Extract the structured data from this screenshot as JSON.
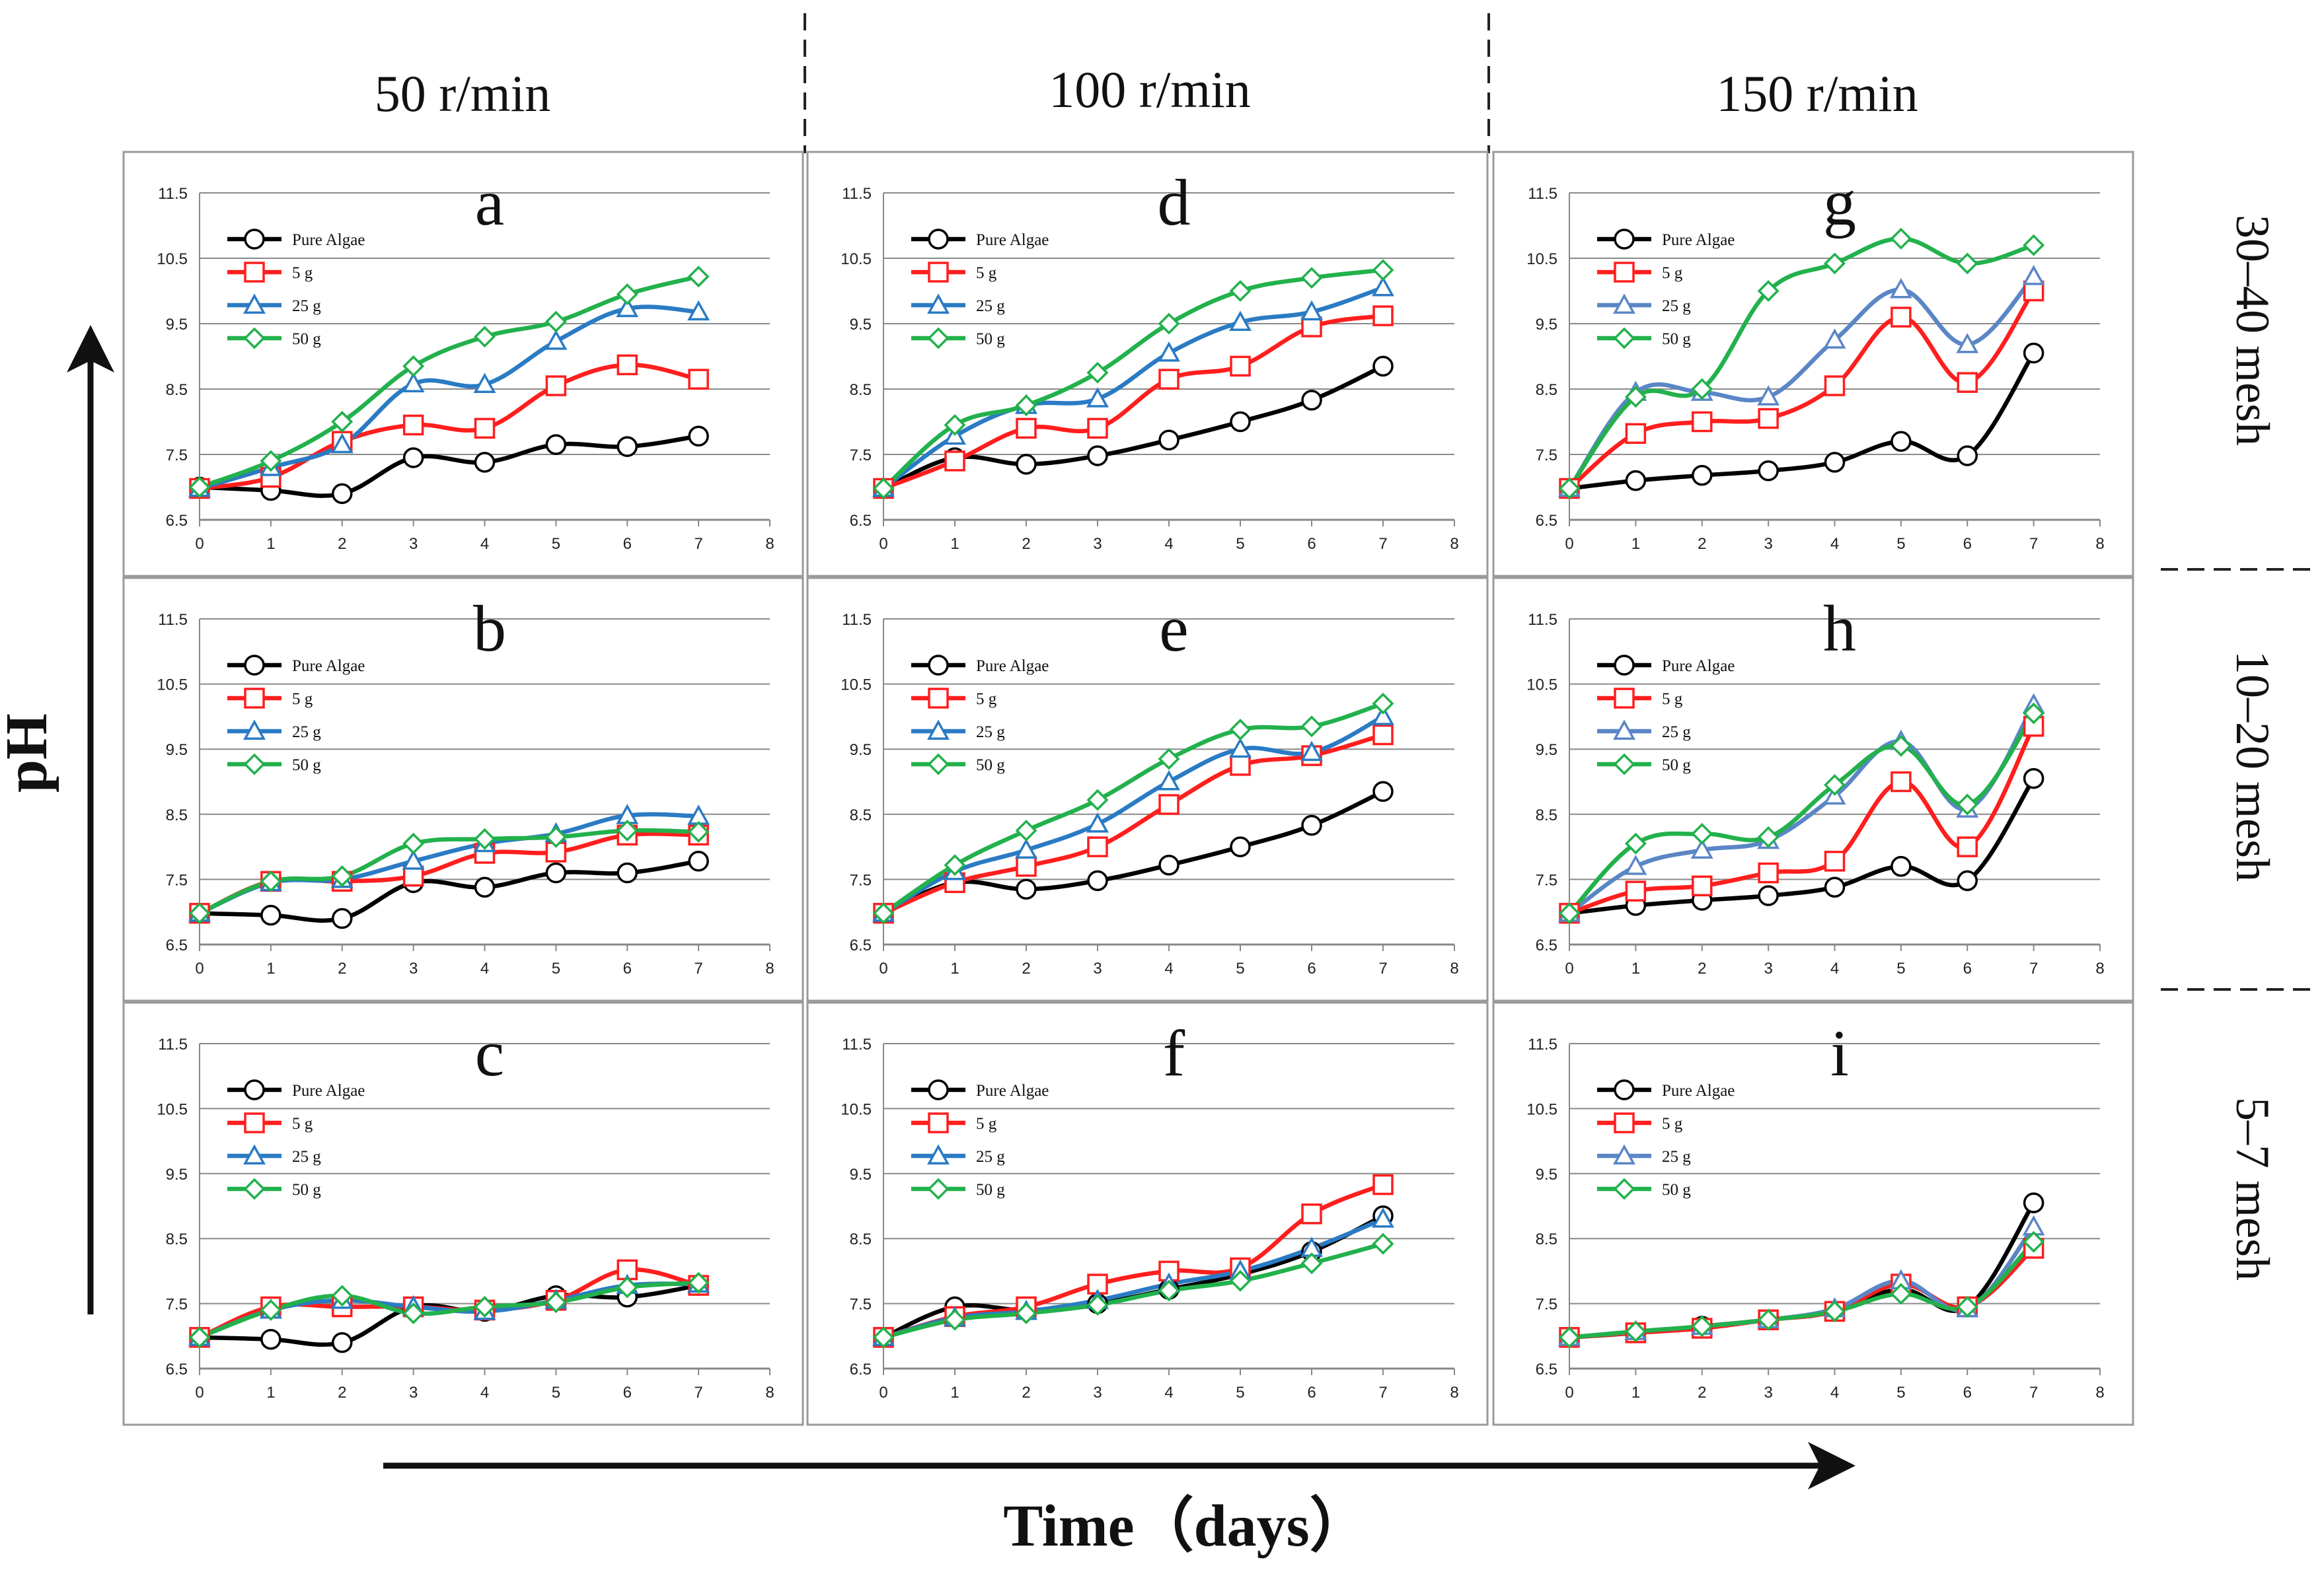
{
  "figure": {
    "y_axis_label": "pH",
    "x_axis_label": "Time（days）",
    "column_headers": [
      "50 r/min",
      "100 r/min",
      "150 r/min"
    ],
    "row_headers": [
      "30–40 mesh",
      "10–20 mesh",
      "5–7 mesh"
    ],
    "colors": {
      "Pure Algae": "#000000",
      "5 g": "#ff1e1e",
      "25 g": "#2a7bc4",
      "25 g (col 3)": "#5b86c6",
      "50 g": "#22b14c"
    },
    "icons": [
      "arrow-up-icon",
      "arrow-right-icon"
    ]
  },
  "chart_data": [
    {
      "panel": "a",
      "type": "line",
      "xlabel": "",
      "ylabel": "",
      "x": [
        0,
        1,
        2,
        3,
        4,
        5,
        6,
        7
      ],
      "xlim": [
        0,
        8
      ],
      "ylim": [
        6.5,
        11.5
      ],
      "xticks": [
        "0",
        "1",
        "2",
        "3",
        "4",
        "5",
        "6",
        "7",
        "8"
      ],
      "yticks": [
        "6.5",
        "7.5",
        "8.5",
        "9.5",
        "10.5",
        "11.5"
      ],
      "grid": true,
      "legend_position": "top-left",
      "series": [
        {
          "name": "Pure Algae",
          "marker": "circle",
          "values": [
            7.0,
            6.95,
            6.9,
            7.45,
            7.38,
            7.65,
            7.62,
            7.78
          ]
        },
        {
          "name": "5 g",
          "marker": "square",
          "values": [
            6.98,
            7.15,
            7.7,
            7.95,
            7.9,
            8.55,
            8.87,
            8.65
          ]
        },
        {
          "name": "25 g",
          "marker": "triangle",
          "values": [
            6.98,
            7.3,
            7.65,
            8.58,
            8.57,
            9.23,
            9.73,
            9.68
          ]
        },
        {
          "name": "50 g",
          "marker": "diamond",
          "values": [
            7.0,
            7.4,
            8.0,
            8.85,
            9.3,
            9.53,
            9.95,
            10.22
          ]
        }
      ]
    },
    {
      "panel": "b",
      "type": "line",
      "xlabel": "",
      "ylabel": "",
      "x": [
        0,
        1,
        2,
        3,
        4,
        5,
        6,
        7
      ],
      "xlim": [
        0,
        8
      ],
      "ylim": [
        6.5,
        11.5
      ],
      "xticks": [
        "0",
        "1",
        "2",
        "3",
        "4",
        "5",
        "6",
        "7",
        "8"
      ],
      "yticks": [
        "6.5",
        "7.5",
        "8.5",
        "9.5",
        "10.5",
        "11.5"
      ],
      "grid": true,
      "legend_position": "top-left",
      "series": [
        {
          "name": "Pure Algae",
          "marker": "circle",
          "values": [
            6.98,
            6.95,
            6.9,
            7.45,
            7.38,
            7.6,
            7.6,
            7.78
          ]
        },
        {
          "name": "5 g",
          "marker": "square",
          "values": [
            6.98,
            7.47,
            7.47,
            7.55,
            7.9,
            7.92,
            8.18,
            8.18
          ]
        },
        {
          "name": "25 g",
          "marker": "triangle",
          "values": [
            6.98,
            7.45,
            7.5,
            7.78,
            8.05,
            8.2,
            8.48,
            8.47
          ]
        },
        {
          "name": "50 g",
          "marker": "diamond",
          "values": [
            6.98,
            7.47,
            7.55,
            8.05,
            8.12,
            8.15,
            8.25,
            8.23
          ]
        }
      ]
    },
    {
      "panel": "c",
      "type": "line",
      "xlabel": "",
      "ylabel": "",
      "x": [
        0,
        1,
        2,
        3,
        4,
        5,
        6,
        7
      ],
      "xlim": [
        0,
        8
      ],
      "ylim": [
        6.5,
        11.5
      ],
      "xticks": [
        "0",
        "1",
        "2",
        "3",
        "4",
        "5",
        "6",
        "7",
        "8"
      ],
      "yticks": [
        "6.5",
        "7.5",
        "8.5",
        "9.5",
        "10.5",
        "11.5"
      ],
      "grid": true,
      "legend_position": "top-left",
      "series": [
        {
          "name": "Pure Algae",
          "marker": "circle",
          "values": [
            6.98,
            6.95,
            6.9,
            7.45,
            7.38,
            7.62,
            7.6,
            7.78
          ]
        },
        {
          "name": "5 g",
          "marker": "square",
          "values": [
            6.98,
            7.45,
            7.45,
            7.45,
            7.4,
            7.55,
            8.02,
            7.78
          ]
        },
        {
          "name": "25 g",
          "marker": "triangle",
          "values": [
            6.98,
            7.4,
            7.55,
            7.45,
            7.38,
            7.55,
            7.78,
            7.8
          ]
        },
        {
          "name": "50 g",
          "marker": "diamond",
          "values": [
            6.98,
            7.4,
            7.62,
            7.35,
            7.45,
            7.52,
            7.75,
            7.82
          ]
        }
      ]
    },
    {
      "panel": "d",
      "type": "line",
      "xlabel": "",
      "ylabel": "",
      "x": [
        0,
        1,
        2,
        3,
        4,
        5,
        6,
        7
      ],
      "xlim": [
        0,
        8
      ],
      "ylim": [
        6.5,
        11.5
      ],
      "xticks": [
        "0",
        "1",
        "2",
        "3",
        "4",
        "5",
        "6",
        "7",
        "8"
      ],
      "yticks": [
        "6.5",
        "7.5",
        "8.5",
        "9.5",
        "10.5",
        "11.5"
      ],
      "grid": true,
      "legend_position": "top-left",
      "series": [
        {
          "name": "Pure Algae",
          "marker": "circle",
          "values": [
            6.98,
            7.45,
            7.35,
            7.48,
            7.72,
            8.0,
            8.33,
            8.85
          ]
        },
        {
          "name": "5 g",
          "marker": "square",
          "values": [
            6.98,
            7.4,
            7.9,
            7.9,
            8.65,
            8.85,
            9.45,
            9.62
          ]
        },
        {
          "name": "25 g",
          "marker": "triangle",
          "values": [
            6.98,
            7.78,
            8.25,
            8.35,
            9.05,
            9.52,
            9.68,
            10.05
          ]
        },
        {
          "name": "50 g",
          "marker": "diamond",
          "values": [
            6.98,
            7.95,
            8.25,
            8.75,
            9.5,
            10.0,
            10.2,
            10.32
          ]
        }
      ]
    },
    {
      "panel": "e",
      "type": "line",
      "xlabel": "",
      "ylabel": "",
      "x": [
        0,
        1,
        2,
        3,
        4,
        5,
        6,
        7
      ],
      "xlim": [
        0,
        8
      ],
      "ylim": [
        6.5,
        11.5
      ],
      "xticks": [
        "0",
        "1",
        "2",
        "3",
        "4",
        "5",
        "6",
        "7",
        "8"
      ],
      "yticks": [
        "6.5",
        "7.5",
        "8.5",
        "9.5",
        "10.5",
        "11.5"
      ],
      "grid": true,
      "legend_position": "top-left",
      "series": [
        {
          "name": "Pure Algae",
          "marker": "circle",
          "values": [
            6.98,
            7.45,
            7.35,
            7.48,
            7.72,
            8.0,
            8.33,
            8.85
          ]
        },
        {
          "name": "5 g",
          "marker": "square",
          "values": [
            6.98,
            7.45,
            7.7,
            8.0,
            8.65,
            9.25,
            9.4,
            9.72
          ]
        },
        {
          "name": "25 g",
          "marker": "triangle",
          "values": [
            6.98,
            7.62,
            7.95,
            8.35,
            9.0,
            9.5,
            9.45,
            10.0
          ]
        },
        {
          "name": "50 g",
          "marker": "diamond",
          "values": [
            6.98,
            7.72,
            8.25,
            8.72,
            9.35,
            9.8,
            9.85,
            10.2
          ]
        }
      ]
    },
    {
      "panel": "f",
      "type": "line",
      "xlabel": "",
      "ylabel": "",
      "x": [
        0,
        1,
        2,
        3,
        4,
        5,
        6,
        7
      ],
      "xlim": [
        0,
        8
      ],
      "ylim": [
        6.5,
        11.5
      ],
      "xticks": [
        "0",
        "1",
        "2",
        "3",
        "4",
        "5",
        "6",
        "7",
        "8"
      ],
      "yticks": [
        "6.5",
        "7.5",
        "8.5",
        "9.5",
        "10.5",
        "11.5"
      ],
      "grid": true,
      "legend_position": "top-left",
      "series": [
        {
          "name": "Pure Algae",
          "marker": "circle",
          "values": [
            6.98,
            7.45,
            7.4,
            7.5,
            7.72,
            7.95,
            8.3,
            8.85
          ]
        },
        {
          "name": "5 g",
          "marker": "square",
          "values": [
            6.98,
            7.3,
            7.45,
            7.8,
            8.0,
            8.05,
            8.88,
            9.33
          ]
        },
        {
          "name": "25 g",
          "marker": "triangle",
          "values": [
            6.98,
            7.28,
            7.38,
            7.55,
            7.8,
            8.0,
            8.35,
            8.8
          ]
        },
        {
          "name": "50 g",
          "marker": "diamond",
          "values": [
            6.98,
            7.25,
            7.35,
            7.48,
            7.7,
            7.85,
            8.12,
            8.42
          ]
        }
      ]
    },
    {
      "panel": "g",
      "type": "line",
      "xlabel": "",
      "ylabel": "",
      "x": [
        0,
        1,
        2,
        3,
        4,
        5,
        6,
        7
      ],
      "xlim": [
        0,
        8
      ],
      "ylim": [
        6.5,
        11.5
      ],
      "xticks": [
        "0",
        "1",
        "2",
        "3",
        "4",
        "5",
        "6",
        "7",
        "8"
      ],
      "yticks": [
        "6.5",
        "7.5",
        "8.5",
        "9.5",
        "10.5",
        "11.5"
      ],
      "grid": true,
      "legend_position": "top-left",
      "series": [
        {
          "name": "Pure Algae",
          "marker": "circle",
          "values": [
            6.98,
            7.1,
            7.18,
            7.25,
            7.38,
            7.7,
            7.48,
            9.05
          ]
        },
        {
          "name": "5 g",
          "marker": "square",
          "values": [
            6.98,
            7.82,
            8.0,
            8.05,
            8.55,
            9.6,
            8.6,
            10.0
          ]
        },
        {
          "name": "25 g",
          "marker": "triangle",
          "values": [
            6.98,
            8.45,
            8.45,
            8.38,
            9.25,
            10.02,
            9.18,
            10.22
          ]
        },
        {
          "name": "50 g",
          "marker": "diamond",
          "values": [
            6.98,
            8.38,
            8.5,
            10.0,
            10.42,
            10.8,
            10.42,
            10.7
          ]
        }
      ]
    },
    {
      "panel": "h",
      "type": "line",
      "xlabel": "",
      "ylabel": "",
      "x": [
        0,
        1,
        2,
        3,
        4,
        5,
        6,
        7
      ],
      "xlim": [
        0,
        8
      ],
      "ylim": [
        6.5,
        11.5
      ],
      "xticks": [
        "0",
        "1",
        "2",
        "3",
        "4",
        "5",
        "6",
        "7",
        "8"
      ],
      "yticks": [
        "6.5",
        "7.5",
        "8.5",
        "9.5",
        "10.5",
        "11.5"
      ],
      "grid": true,
      "legend_position": "top-left",
      "series": [
        {
          "name": "Pure Algae",
          "marker": "circle",
          "values": [
            6.98,
            7.1,
            7.18,
            7.25,
            7.38,
            7.7,
            7.48,
            9.05
          ]
        },
        {
          "name": "5 g",
          "marker": "square",
          "values": [
            6.98,
            7.32,
            7.4,
            7.6,
            7.78,
            9.0,
            8.0,
            9.85
          ]
        },
        {
          "name": "25 g",
          "marker": "triangle",
          "values": [
            6.98,
            7.7,
            7.95,
            8.1,
            8.78,
            9.62,
            8.58,
            10.18
          ]
        },
        {
          "name": "50 g",
          "marker": "diamond",
          "values": [
            6.98,
            8.05,
            8.2,
            8.15,
            8.95,
            9.55,
            8.65,
            10.05
          ]
        }
      ]
    },
    {
      "panel": "i",
      "type": "line",
      "xlabel": "",
      "ylabel": "",
      "x": [
        0,
        1,
        2,
        3,
        4,
        5,
        6,
        7
      ],
      "xlim": [
        0,
        8
      ],
      "ylim": [
        6.5,
        11.5
      ],
      "xticks": [
        "0",
        "1",
        "2",
        "3",
        "4",
        "5",
        "6",
        "7",
        "8"
      ],
      "yticks": [
        "6.5",
        "7.5",
        "8.5",
        "9.5",
        "10.5",
        "11.5"
      ],
      "grid": true,
      "legend_position": "top-left",
      "series": [
        {
          "name": "Pure Algae",
          "marker": "circle",
          "values": [
            6.98,
            7.05,
            7.15,
            7.25,
            7.38,
            7.72,
            7.45,
            9.05
          ]
        },
        {
          "name": "5 g",
          "marker": "square",
          "values": [
            6.98,
            7.05,
            7.12,
            7.25,
            7.38,
            7.8,
            7.45,
            8.35
          ]
        },
        {
          "name": "25 g",
          "marker": "triangle",
          "values": [
            6.98,
            7.07,
            7.15,
            7.25,
            7.42,
            7.85,
            7.42,
            8.68
          ]
        },
        {
          "name": "50 g",
          "marker": "diamond",
          "values": [
            6.98,
            7.07,
            7.15,
            7.25,
            7.38,
            7.65,
            7.45,
            8.45
          ]
        }
      ]
    }
  ]
}
